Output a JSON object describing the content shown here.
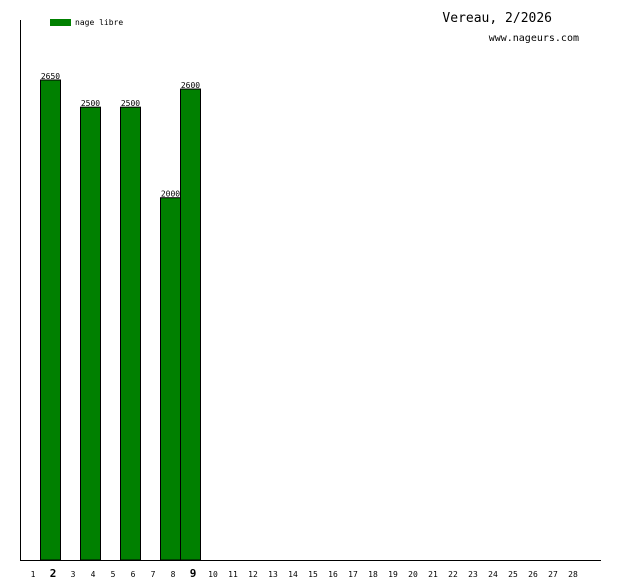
{
  "header": {
    "title": "Vereau, 2/2026",
    "site": "www.nageurs.com"
  },
  "colors": {
    "bar": "#008000",
    "axis": "#000000",
    "text": "#000000"
  },
  "chart_data": {
    "type": "bar",
    "title": "Vereau, 2/2026",
    "xlabel": "",
    "ylabel": "",
    "categories": [
      "1",
      "2",
      "3",
      "4",
      "5",
      "6",
      "7",
      "8",
      "9",
      "10",
      "11",
      "12",
      "13",
      "14",
      "15",
      "16",
      "17",
      "18",
      "19",
      "20",
      "21",
      "22",
      "23",
      "24",
      "25",
      "26",
      "27",
      "28"
    ],
    "bold_categories": [
      "2",
      "9"
    ],
    "series": [
      {
        "name": "nage libre",
        "points": [
          {
            "day": 2,
            "value": 2650
          },
          {
            "day": 4,
            "value": 2500
          },
          {
            "day": 6,
            "value": 2500
          },
          {
            "day": 8,
            "value": 2000
          },
          {
            "day": 9,
            "value": 2600
          }
        ]
      }
    ],
    "ylim": [
      0,
      2650
    ],
    "grid": false,
    "legend": "top-left"
  }
}
